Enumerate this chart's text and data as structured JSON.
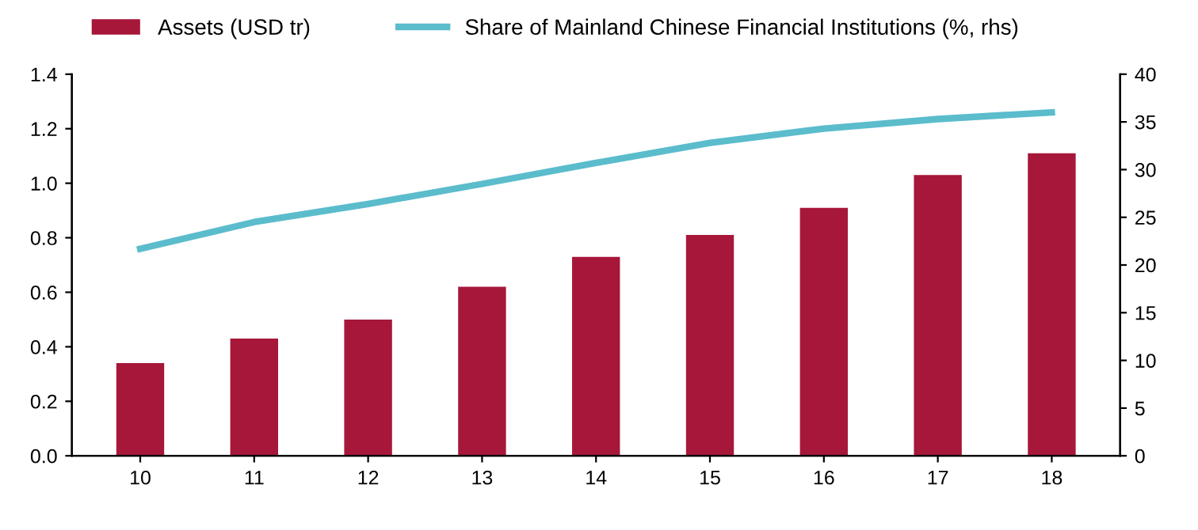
{
  "chart_data": {
    "type": "bar",
    "categories": [
      "10",
      "11",
      "12",
      "13",
      "14",
      "15",
      "16",
      "17",
      "18"
    ],
    "series": [
      {
        "name": "Assets (USD tr)",
        "color": "#a6173a",
        "values": [
          0.34,
          0.43,
          0.5,
          0.62,
          0.73,
          0.81,
          0.91,
          1.03,
          1.11
        ]
      },
      {
        "name": "Share of Mainland Chinese Financial Institutions (%, rhs)",
        "type": "line",
        "axis": "y2",
        "color": "#5bbccc",
        "values": [
          21.7,
          24.5,
          26.4,
          28.5,
          30.7,
          32.8,
          34.3,
          35.3,
          36.0
        ]
      }
    ],
    "ylim": [
      0,
      1.4
    ],
    "yticks": [
      {
        "value": 0,
        "label": "0.0"
      },
      0.2,
      0.4,
      0.6,
      0.8,
      {
        "value": 1,
        "label": "1.0"
      },
      1.2,
      1.4
    ],
    "y2lim": [
      0,
      40
    ],
    "y2ticks": [
      0,
      5,
      10,
      15,
      20,
      25,
      30,
      35,
      40
    ],
    "grid": false,
    "legend": "top",
    "marker": "none",
    "line_style": "solid"
  }
}
